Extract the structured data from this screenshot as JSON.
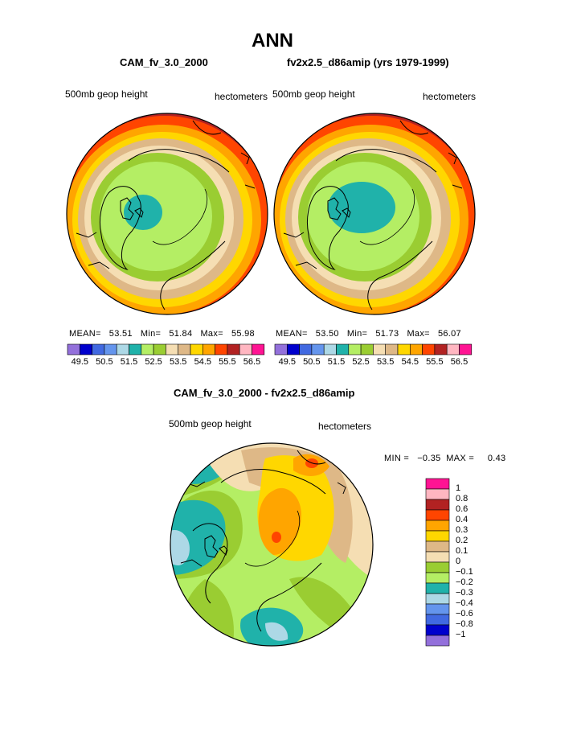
{
  "page": {
    "title": "ANN",
    "left_case": "CAM_fv_3.0_2000",
    "right_case": "fv2x2.5_d86amip (yrs 1979-1999)",
    "diff_title": "CAM_fv_3.0_2000 - fv2x2.5_d86amip"
  },
  "panels": {
    "left": {
      "variable": "500mb geop height",
      "units": "hectometers",
      "mean_label": "MEAN=",
      "mean": "53.51",
      "min_label": "Min=",
      "min": "51.84",
      "max_label": "Max=",
      "max": "55.98"
    },
    "right": {
      "variable": "500mb geop height",
      "units": "hectometers",
      "mean_label": "MEAN=",
      "mean": "53.50",
      "min_label": "Min=",
      "min": "51.73",
      "max_label": "Max=",
      "max": "56.07"
    },
    "diff": {
      "variable": "500mb geop height",
      "units": "hectometers",
      "minmax": "MIN =   −0.35  MAX =     0.43"
    }
  },
  "colorbar_top": {
    "colors": [
      "#9370db",
      "#0000cd",
      "#4169e1",
      "#6495ed",
      "#add8e6",
      "#20b2aa",
      "#b4ee64",
      "#9acd32",
      "#f5deb3",
      "#deb887",
      "#ffd700",
      "#ffa500",
      "#ff4500",
      "#b22222",
      "#ffb6c1",
      "#ff1493"
    ],
    "tick_labels": [
      "49.5",
      "50.5",
      "51.5",
      "52.5",
      "53.5",
      "54.5",
      "55.5",
      "56.5"
    ]
  },
  "colorbar_diff": {
    "colors": [
      "#ff1493",
      "#ffb6c1",
      "#b22222",
      "#ff4500",
      "#ffa500",
      "#ffd700",
      "#deb887",
      "#f5deb3",
      "#9acd32",
      "#b4ee64",
      "#20b2aa",
      "#add8e6",
      "#6495ed",
      "#4169e1",
      "#0000cd",
      "#9370db"
    ],
    "tick_labels": [
      "1",
      "0.8",
      "0.6",
      "0.4",
      "0.3",
      "0.2",
      "0.1",
      "0",
      "−0.1",
      "−0.2",
      "−0.3",
      "−0.4",
      "−0.6",
      "−0.8",
      "−1"
    ]
  }
}
